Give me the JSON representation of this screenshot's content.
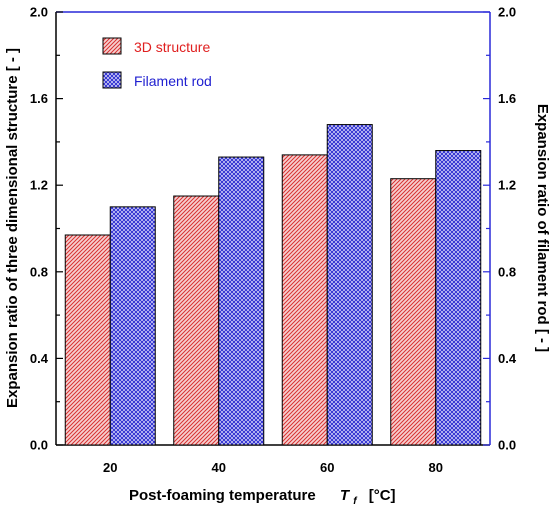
{
  "chart_data": {
    "type": "bar",
    "categories": [
      "20",
      "40",
      "60",
      "80"
    ],
    "series": [
      {
        "name": "3D structure",
        "values": [
          0.97,
          1.15,
          1.34,
          1.23
        ],
        "color": "#e03030",
        "fill": "#f4c6c6"
      },
      {
        "name": "Filament rod",
        "values": [
          1.1,
          1.33,
          1.48,
          1.36
        ],
        "color": "#2828d8",
        "fill": "#c4c4f2"
      }
    ],
    "ylim": [
      0,
      2.0
    ],
    "yticks": [
      "0.0",
      "0.4",
      "0.8",
      "1.2",
      "1.6",
      "2.0"
    ],
    "ylabel_left": "Expansion ratio of three dimensional structure   [ - ]",
    "ylabel_right": "Expansion ratio of filament rod   [ - ]",
    "xlabel_text": "Post-foaming temperature",
    "xlabel_symbol": "T",
    "xlabel_subscript": "f",
    "xlabel_unit": "[°C]",
    "legend_position": "top-left",
    "grid": false
  }
}
